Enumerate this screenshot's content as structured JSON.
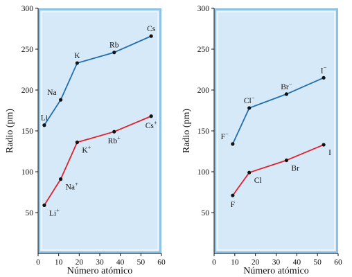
{
  "colors": {
    "plot_fill": "#d6e9f8",
    "plot_border": "#8fc3e6",
    "atom_line": "#1f6fb0",
    "ion_line": "#e0202a",
    "point": "#111111"
  },
  "chart_data": [
    {
      "type": "line",
      "xlabel": "Número atómico",
      "ylabel": "Radio (pm)",
      "xlim": [
        0,
        60
      ],
      "ylim": [
        0,
        300
      ],
      "xticks": [
        "0",
        "10",
        "20",
        "30",
        "40",
        "50",
        "60"
      ],
      "yticks": [
        "50",
        "100",
        "150",
        "200",
        "250",
        "300"
      ],
      "grid": false,
      "series": [
        {
          "key": "atoms",
          "color": "#1f6fb0",
          "points": [
            {
              "x": 3,
              "y": 157,
              "label": "Li",
              "pos": "above"
            },
            {
              "x": 11,
              "y": 188,
              "label": "Na",
              "pos": "above-left"
            },
            {
              "x": 19,
              "y": 233,
              "label": "K",
              "pos": "above"
            },
            {
              "x": 37,
              "y": 246,
              "label": "Rb",
              "pos": "above"
            },
            {
              "x": 55,
              "y": 266,
              "label": "Cs",
              "pos": "above"
            }
          ]
        },
        {
          "key": "ions",
          "color": "#e0202a",
          "points": [
            {
              "x": 3,
              "y": 59,
              "label": "Li",
              "sup": "+",
              "pos": "below-right"
            },
            {
              "x": 11,
              "y": 91,
              "label": "Na",
              "sup": "+",
              "pos": "below-right"
            },
            {
              "x": 19,
              "y": 136,
              "label": "K",
              "sup": "+",
              "pos": "below-right"
            },
            {
              "x": 37,
              "y": 149,
              "label": "Rb",
              "sup": "+",
              "pos": "below"
            },
            {
              "x": 55,
              "y": 168,
              "label": "Cs",
              "sup": "+",
              "pos": "below"
            }
          ]
        }
      ]
    },
    {
      "type": "line",
      "xlabel": "Número atómico",
      "ylabel": "Radio (pm)",
      "xlim": [
        0,
        60
      ],
      "ylim": [
        0,
        300
      ],
      "xticks": [
        "0",
        "10",
        "20",
        "30",
        "40",
        "50",
        "60"
      ],
      "yticks": [
        "50",
        "100",
        "150",
        "200",
        "250",
        "300"
      ],
      "grid": false,
      "series": [
        {
          "key": "anions",
          "color": "#1f6fb0",
          "points": [
            {
              "x": 9,
              "y": 134,
              "label": "F",
              "sup": "−",
              "pos": "above-left"
            },
            {
              "x": 17,
              "y": 178,
              "label": "Cl",
              "sup": "−",
              "pos": "above"
            },
            {
              "x": 35,
              "y": 195,
              "label": "Br",
              "sup": "−",
              "pos": "above"
            },
            {
              "x": 53,
              "y": 215,
              "label": "I",
              "sup": "−",
              "pos": "above"
            }
          ]
        },
        {
          "key": "atoms",
          "color": "#e0202a",
          "points": [
            {
              "x": 9,
              "y": 71,
              "label": "F",
              "pos": "below"
            },
            {
              "x": 17,
              "y": 99,
              "label": "Cl",
              "pos": "below-right"
            },
            {
              "x": 35,
              "y": 114,
              "label": "Br",
              "pos": "below-right"
            },
            {
              "x": 53,
              "y": 133,
              "label": "I",
              "pos": "below-right"
            }
          ]
        }
      ]
    }
  ]
}
